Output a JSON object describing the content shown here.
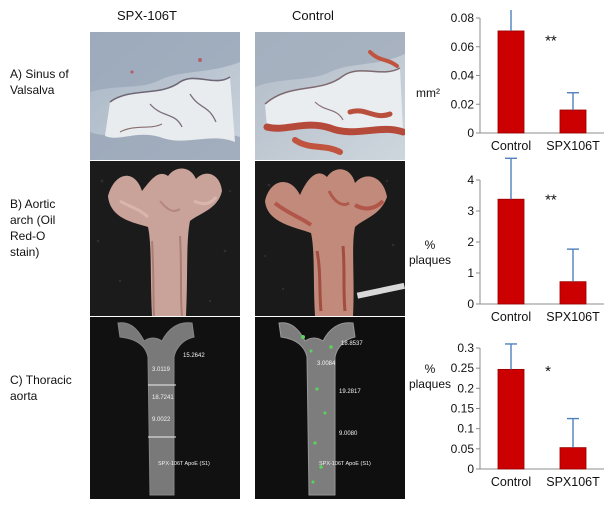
{
  "columns": {
    "treated": "SPX-106T",
    "control": "Control"
  },
  "rows": [
    {
      "label_lines": [
        "A) Sinus of",
        "Valsalva"
      ],
      "unit_lines": [
        "mm²"
      ]
    },
    {
      "label_lines": [
        "B) Aortic",
        "arch (Oil",
        "Red-O",
        "stain)"
      ],
      "unit_lines": [
        "%",
        "plaques"
      ]
    },
    {
      "label_lines": [
        "C) Thoracic",
        "aorta"
      ],
      "unit_lines": [
        "%",
        "plaques"
      ]
    }
  ],
  "micrograph_annotations": {
    "treated": [
      "15.2642",
      "3.0119",
      "18.7241",
      "9.0022",
      "SPX-106T ApoE (S1)"
    ],
    "control": [
      "18.8537",
      "3.0084",
      "19.2817",
      "9.0080",
      "SPX-106T ApoE (S1)"
    ]
  },
  "colors": {
    "bar": "#cc0000",
    "bar_edge": "#990000",
    "error_bar": "#4f81bd",
    "axis": "#8c8c8c"
  },
  "chart_data": [
    {
      "type": "bar",
      "categories": [
        "Control",
        "SPX106T"
      ],
      "values": [
        0.071,
        0.016
      ],
      "errors": [
        0.019,
        0.012
      ],
      "ylim": [
        0,
        0.08
      ],
      "yticks": [
        "0",
        "0.02",
        "0.04",
        "0.06",
        "0.08"
      ],
      "ytick_values": [
        0,
        0.02,
        0.04,
        0.06,
        0.08
      ],
      "annotation": "**",
      "annotation_value": 0.065
    },
    {
      "type": "bar",
      "categories": [
        "Control",
        "SPX106T"
      ],
      "values": [
        3.38,
        0.72
      ],
      "errors": [
        1.32,
        1.05
      ],
      "ylim": [
        0,
        4
      ],
      "yticks": [
        "0",
        "1",
        "2",
        "3",
        "4"
      ],
      "ytick_values": [
        0,
        1,
        2,
        3,
        4
      ],
      "annotation": "**",
      "annotation_value": 3.4
    },
    {
      "type": "bar",
      "categories": [
        "Control",
        "SPX106T"
      ],
      "values": [
        0.247,
        0.053
      ],
      "errors": [
        0.063,
        0.072
      ],
      "ylim": [
        0,
        0.3
      ],
      "yticks": [
        "0",
        "0.05",
        "0.1",
        "0.15",
        "0.2",
        "0.25",
        "0.3"
      ],
      "ytick_values": [
        0,
        0.05,
        0.1,
        0.15,
        0.2,
        0.25,
        0.3
      ],
      "annotation": "*",
      "annotation_value": 0.245
    }
  ]
}
